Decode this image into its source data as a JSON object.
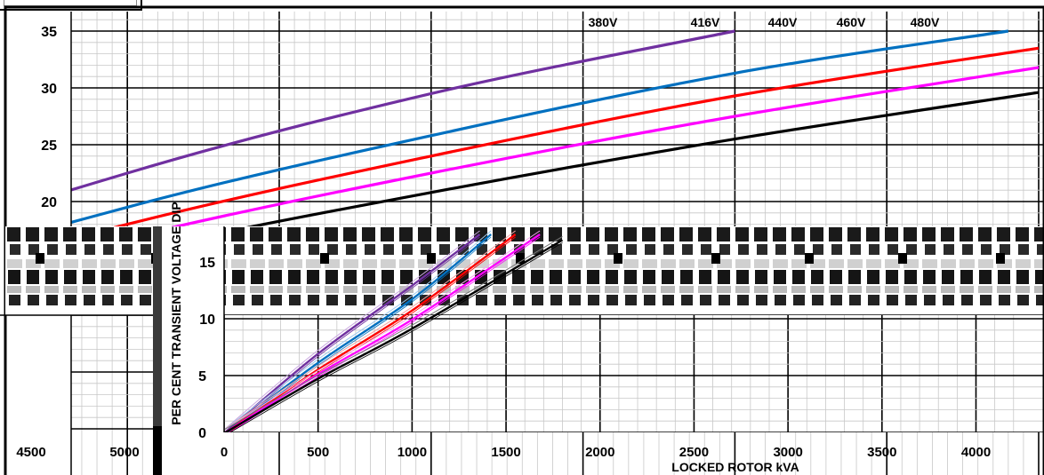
{
  "chart_data": [
    {
      "type": "line",
      "title": "",
      "xlabel": "",
      "ylabel": "PER CENT TRANSIENT VOLTAGE DIP",
      "x_tick_labels": [
        "0",
        "500",
        "1000",
        "1500",
        "2000",
        "2500",
        "3000",
        "3500",
        "4000",
        "4500",
        "5000"
      ],
      "y_tick_labels": [
        "0",
        "5",
        "10",
        "15",
        "20",
        "25",
        "30",
        "35"
      ],
      "xlim": [
        0,
        5000
      ],
      "ylim": [
        0,
        35
      ],
      "grid": true,
      "series": [
        {
          "name": "380V",
          "color": "#7030a0",
          "x": [
            0,
            1000,
            2000,
            3000,
            4000
          ],
          "y": [
            0,
            13.5,
            22.5,
            29.5,
            35
          ]
        },
        {
          "name": "416V",
          "color": "#0070c0",
          "x": [
            0,
            1000,
            2000,
            3000,
            4000,
            4900
          ],
          "y": [
            0,
            11.5,
            19.5,
            25.8,
            31.3,
            35
          ]
        },
        {
          "name": "440V",
          "color": "#ff0000",
          "x": [
            0,
            1000,
            2000,
            3000,
            4000,
            5000
          ],
          "y": [
            0,
            10.5,
            18.0,
            24.0,
            29.3,
            33.5
          ]
        },
        {
          "name": "460V",
          "color": "#ff00ff",
          "x": [
            0,
            1000,
            2000,
            3000,
            4000,
            5000
          ],
          "y": [
            0,
            9.8,
            16.8,
            22.5,
            27.5,
            31.8
          ]
        },
        {
          "name": "480V",
          "color": "#000000",
          "x": [
            0,
            1000,
            2000,
            3000,
            4000,
            5000
          ],
          "y": [
            0,
            9.0,
            15.5,
            20.8,
            25.5,
            29.6
          ]
        }
      ]
    },
    {
      "type": "line",
      "title": "",
      "xlabel": "LOCKED ROTOR kVA",
      "ylabel": "PER CENT TRANSIENT VOLTAGE DIP",
      "x_tick_labels": [
        "0",
        "500",
        "1000",
        "1500",
        "2000",
        "2500",
        "3000",
        "3500",
        "4000"
      ],
      "y_tick_labels": [
        "0",
        "5",
        "10",
        "15"
      ],
      "xlim": [
        0,
        4200
      ],
      "ylim": [
        0,
        18
      ],
      "grid": true,
      "series": [
        {
          "name": "380V",
          "color": "#7030a0",
          "x": [
            0,
            500,
            1000,
            1360
          ],
          "y": [
            0,
            7.0,
            13.0,
            17.5
          ]
        },
        {
          "name": "416V",
          "color": "#0070c0",
          "x": [
            0,
            500,
            1000,
            1420
          ],
          "y": [
            0,
            6.2,
            11.8,
            17.5
          ]
        },
        {
          "name": "440V",
          "color": "#ff0000",
          "x": [
            0,
            500,
            1000,
            1550
          ],
          "y": [
            0,
            5.6,
            10.8,
            17.5
          ]
        },
        {
          "name": "460V",
          "color": "#ff00ff",
          "x": [
            0,
            500,
            1000,
            1680
          ],
          "y": [
            0,
            5.2,
            10.0,
            17.5
          ]
        },
        {
          "name": "480V",
          "color": "#000000",
          "x": [
            0,
            500,
            1000,
            1800
          ],
          "y": [
            0,
            4.8,
            9.2,
            17.0
          ]
        }
      ]
    }
  ]
}
